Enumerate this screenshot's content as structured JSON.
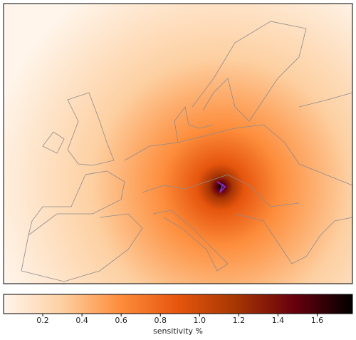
{
  "colorbar": {
    "label": "sensitivity  %",
    "range": [
      0,
      1.78
    ],
    "ticks": [
      0.2,
      0.4,
      0.6,
      0.8,
      {
        "value": 1,
        "label": "1.0"
      },
      1.2,
      1.4,
      1.6
    ],
    "colormap": [
      "#fff5eb",
      "#fdd0a2",
      "#fd8d3c",
      "#e6550d",
      "#a63603",
      "#67000d",
      "#000000"
    ]
  }
}
